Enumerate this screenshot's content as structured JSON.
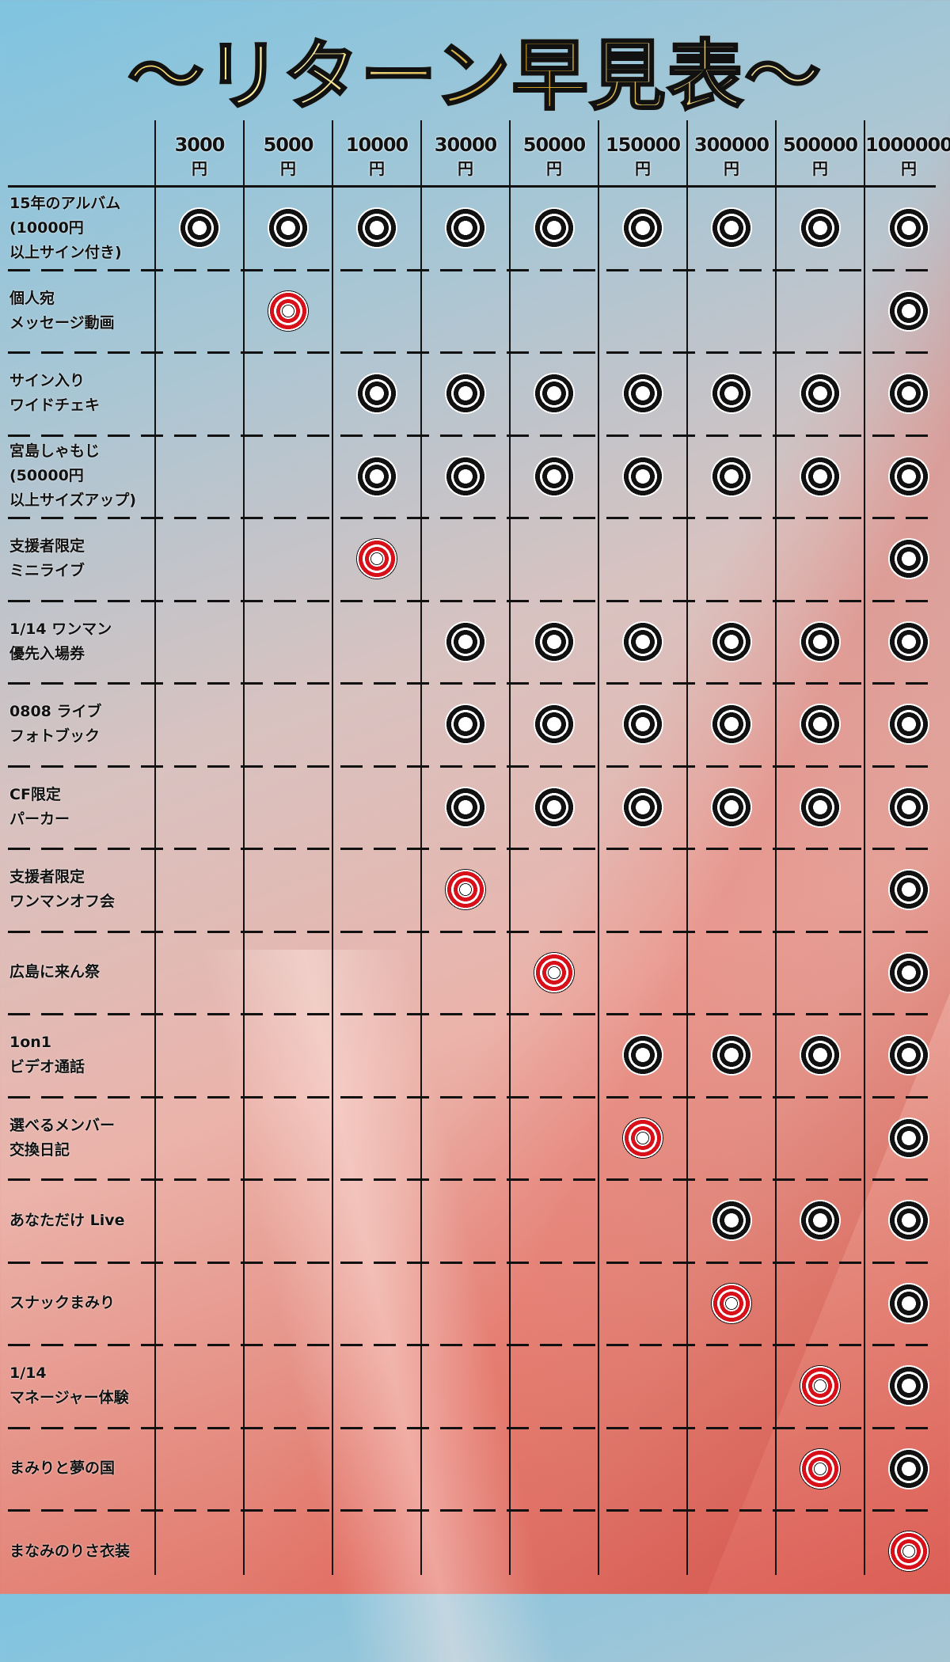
{
  "title": "〜リターン早見表〜",
  "colors": {
    "black_mark": "#111111",
    "red_mark": "#d8101a",
    "title_gold": "#c99a1e"
  },
  "columns": [
    {
      "amount": "3000",
      "unit": "円"
    },
    {
      "amount": "5000",
      "unit": "円"
    },
    {
      "amount": "10000",
      "unit": "円"
    },
    {
      "amount": "30000",
      "unit": "円"
    },
    {
      "amount": "50000",
      "unit": "円"
    },
    {
      "amount": "150000",
      "unit": "円"
    },
    {
      "amount": "300000",
      "unit": "円"
    },
    {
      "amount": "500000",
      "unit": "円"
    },
    {
      "amount": "1000000",
      "unit": "円"
    }
  ],
  "rows": [
    {
      "lines": [
        "15年のアルバム",
        "(10000円",
        "以上サイン付き)"
      ],
      "marks": [
        "black",
        "black",
        "black",
        "black",
        "black",
        "black",
        "black",
        "black",
        "black"
      ]
    },
    {
      "lines": [
        "個人宛",
        "メッセージ動画"
      ],
      "marks": [
        null,
        "red",
        null,
        null,
        null,
        null,
        null,
        null,
        "black"
      ]
    },
    {
      "lines": [
        "サイン入り",
        "ワイドチェキ"
      ],
      "marks": [
        null,
        null,
        "black",
        "black",
        "black",
        "black",
        "black",
        "black",
        "black"
      ]
    },
    {
      "lines": [
        "宮島しゃもじ",
        "(50000円",
        "以上サイズアップ)"
      ],
      "marks": [
        null,
        null,
        "black",
        "black",
        "black",
        "black",
        "black",
        "black",
        "black"
      ]
    },
    {
      "lines": [
        "支援者限定",
        "ミニライブ"
      ],
      "marks": [
        null,
        null,
        "red",
        null,
        null,
        null,
        null,
        null,
        "black"
      ]
    },
    {
      "lines": [
        "1/14 ワンマン",
        "優先入場券"
      ],
      "marks": [
        null,
        null,
        null,
        "black",
        "black",
        "black",
        "black",
        "black",
        "black"
      ]
    },
    {
      "lines": [
        "0808 ライブ",
        "フォトブック"
      ],
      "marks": [
        null,
        null,
        null,
        "black",
        "black",
        "black",
        "black",
        "black",
        "black"
      ]
    },
    {
      "lines": [
        "CF限定",
        "パーカー"
      ],
      "marks": [
        null,
        null,
        null,
        "black",
        "black",
        "black",
        "black",
        "black",
        "black"
      ]
    },
    {
      "lines": [
        "支援者限定",
        "ワンマンオフ会"
      ],
      "marks": [
        null,
        null,
        null,
        "red",
        null,
        null,
        null,
        null,
        "black"
      ]
    },
    {
      "lines": [
        "広島に来ん祭"
      ],
      "marks": [
        null,
        null,
        null,
        null,
        "red",
        null,
        null,
        null,
        "black"
      ]
    },
    {
      "lines": [
        "1on1",
        "ビデオ通話"
      ],
      "marks": [
        null,
        null,
        null,
        null,
        null,
        "black",
        "black",
        "black",
        "black"
      ]
    },
    {
      "lines": [
        "選べるメンバー",
        "交換日記"
      ],
      "marks": [
        null,
        null,
        null,
        null,
        null,
        "red",
        null,
        null,
        "black"
      ]
    },
    {
      "lines": [
        "あなただけ Live"
      ],
      "marks": [
        null,
        null,
        null,
        null,
        null,
        null,
        "black",
        "black",
        "black"
      ]
    },
    {
      "lines": [
        "スナックまみり"
      ],
      "marks": [
        null,
        null,
        null,
        null,
        null,
        null,
        "red",
        null,
        "black"
      ]
    },
    {
      "lines": [
        "1/14",
        "マネージャー体験"
      ],
      "marks": [
        null,
        null,
        null,
        null,
        null,
        null,
        null,
        "red",
        "black"
      ]
    },
    {
      "lines": [
        "まみりと夢の国"
      ],
      "marks": [
        null,
        null,
        null,
        null,
        null,
        null,
        null,
        "red",
        "black"
      ]
    },
    {
      "lines": [
        "まなみのりさ衣装"
      ],
      "marks": [
        null,
        null,
        null,
        null,
        null,
        null,
        null,
        null,
        "red"
      ]
    }
  ]
}
